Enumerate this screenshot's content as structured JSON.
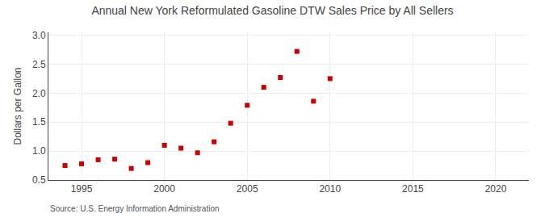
{
  "chart_data": {
    "type": "scatter",
    "title": "Annual New York Reformulated Gasoline DTW Sales Price by All Sellers",
    "y_label": "Dollars per Gallon",
    "annotations": [
      "Source: U.S. Energy Information Administration"
    ],
    "x": [
      1994,
      1995,
      1996,
      1997,
      1998,
      1999,
      2000,
      2001,
      2002,
      2003,
      2004,
      2005,
      2006,
      2007,
      2008,
      2009,
      2010
    ],
    "values": [
      0.75,
      0.78,
      0.85,
      0.86,
      0.7,
      0.8,
      1.1,
      1.05,
      0.97,
      1.16,
      1.48,
      1.79,
      2.1,
      2.27,
      2.72,
      1.86,
      2.25
    ],
    "color": "#cc0000",
    "marker": "square",
    "xlim": [
      1993,
      2022
    ],
    "xticks": [
      1995,
      2000,
      2005,
      2010,
      2015,
      2020
    ],
    "ylim": [
      0.5,
      3.05
    ],
    "yticks": [
      0.5,
      {
        "value": 1.0,
        "label": "1.0"
      },
      1.5,
      {
        "value": 2.0,
        "label": "2.0"
      },
      2.5,
      {
        "value": 3.0,
        "label": "3.0"
      }
    ],
    "grid": true
  }
}
